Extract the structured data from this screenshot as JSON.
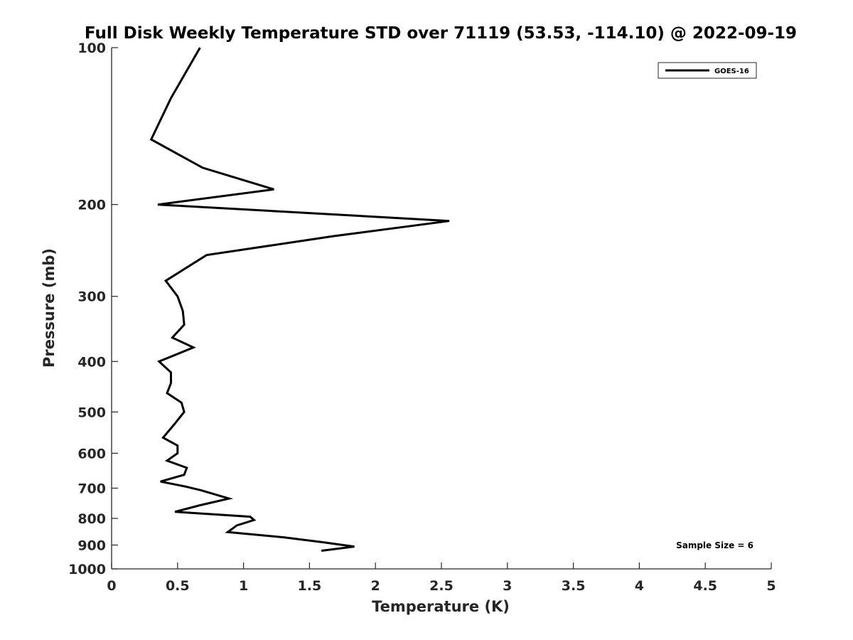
{
  "chart_data": {
    "type": "line",
    "title": "Full Disk Weekly Temperature STD over 71119 (53.53, -114.10) @ 2022-09-19",
    "xlabel": "Temperature (K)",
    "ylabel": "Pressure (mb)",
    "xlim": [
      0,
      5
    ],
    "ylim": [
      100,
      1000
    ],
    "y_scale": "log",
    "y_reversed": true,
    "x_ticks": [
      "0",
      "0.5",
      "1",
      "1.5",
      "2",
      "2.5",
      "3",
      "3.5",
      "4",
      "4.5",
      "5"
    ],
    "y_ticks": [
      "100",
      "200",
      "300",
      "400",
      "500",
      "600",
      "700",
      "800",
      "900",
      "1000"
    ],
    "grid": false,
    "legend_position": "top-right",
    "annotation": "Sample Size = 6",
    "series": [
      {
        "name": "GOES-16",
        "color": "#000000",
        "points": [
          [
            0.67,
            100
          ],
          [
            0.45,
            125
          ],
          [
            0.3,
            150
          ],
          [
            0.69,
            170
          ],
          [
            1.23,
            187
          ],
          [
            0.35,
            200
          ],
          [
            2.56,
            215
          ],
          [
            1.68,
            230
          ],
          [
            0.72,
            250
          ],
          [
            0.41,
            280
          ],
          [
            0.5,
            300
          ],
          [
            0.54,
            320
          ],
          [
            0.55,
            340
          ],
          [
            0.46,
            360
          ],
          [
            0.62,
            376
          ],
          [
            0.36,
            400
          ],
          [
            0.45,
            420
          ],
          [
            0.45,
            440
          ],
          [
            0.42,
            460
          ],
          [
            0.53,
            480
          ],
          [
            0.55,
            500
          ],
          [
            0.47,
            530
          ],
          [
            0.39,
            560
          ],
          [
            0.5,
            580
          ],
          [
            0.5,
            600
          ],
          [
            0.42,
            620
          ],
          [
            0.57,
            640
          ],
          [
            0.55,
            660
          ],
          [
            0.37,
            680
          ],
          [
            0.56,
            695
          ],
          [
            0.68,
            707
          ],
          [
            0.89,
            733
          ],
          [
            0.67,
            755
          ],
          [
            0.48,
            777
          ],
          [
            1.05,
            794
          ],
          [
            1.08,
            806
          ],
          [
            0.95,
            825
          ],
          [
            0.88,
            850
          ],
          [
            1.31,
            870
          ],
          [
            1.6,
            889
          ],
          [
            1.84,
            906
          ],
          [
            1.59,
            923
          ]
        ]
      }
    ]
  }
}
